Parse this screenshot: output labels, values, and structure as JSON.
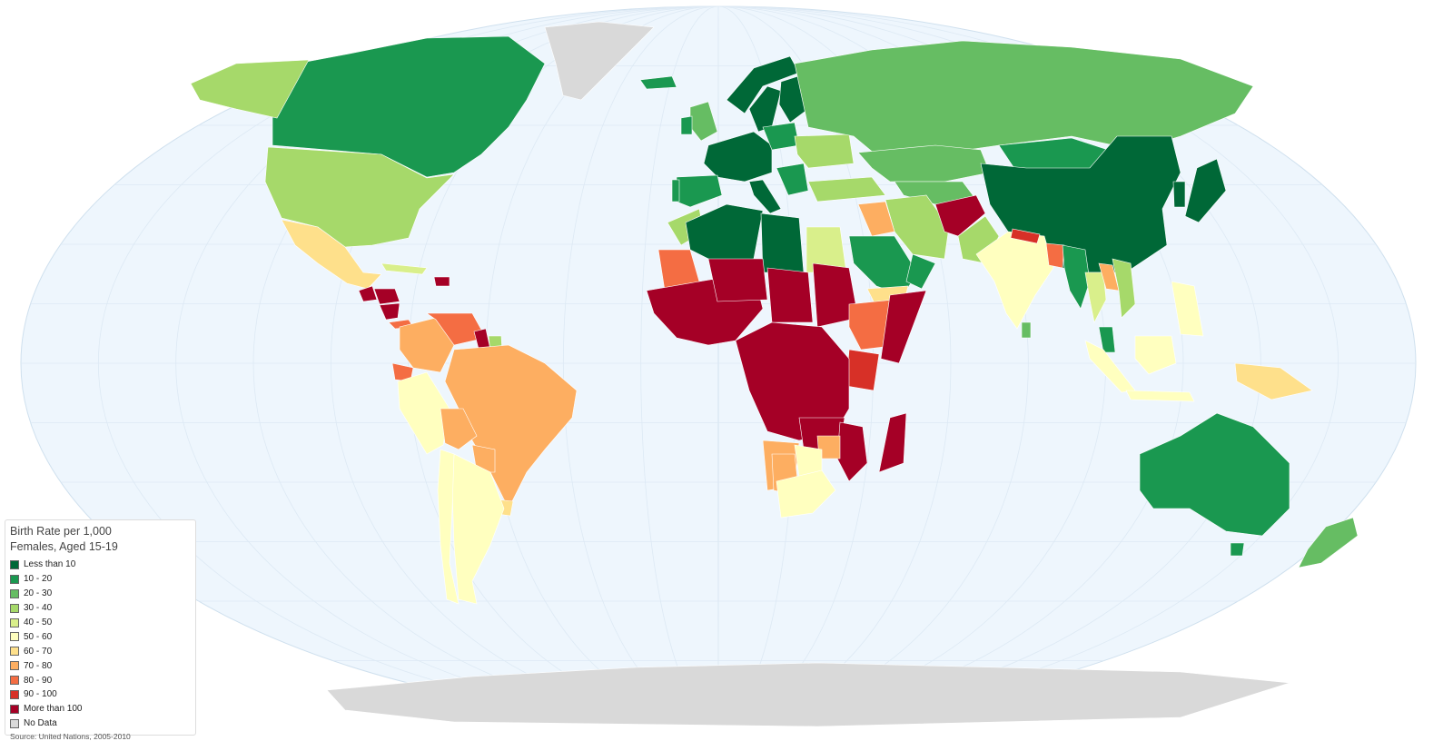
{
  "legend": {
    "title": "Birth Rate per 1,000 Females, Aged 15-19",
    "source": "Source: United Nations, 2005-2010",
    "items": [
      {
        "label": "Less than 10",
        "color": "#006837"
      },
      {
        "label": "10 - 20",
        "color": "#1a9850"
      },
      {
        "label": "20 - 30",
        "color": "#66bd63"
      },
      {
        "label": "30 - 40",
        "color": "#a6d96a"
      },
      {
        "label": "40 - 50",
        "color": "#d9ef8b"
      },
      {
        "label": "50 - 60",
        "color": "#ffffbf"
      },
      {
        "label": "60 - 70",
        "color": "#fee08b"
      },
      {
        "label": "70 - 80",
        "color": "#fdae61"
      },
      {
        "label": "80 - 90",
        "color": "#f46d43"
      },
      {
        "label": "90 - 100",
        "color": "#d73027"
      },
      {
        "label": "More than 100",
        "color": "#a50026"
      },
      {
        "label": "No Data",
        "color": "#d9d9d9"
      }
    ]
  },
  "map": {
    "projection": "robinson",
    "ocean_color": "#eef6fd",
    "graticule_color": "#dde9f4",
    "nodata_color": "#d9d9d9"
  },
  "regions": [
    {
      "name": "Greenland",
      "class": "No Data"
    },
    {
      "name": "Antarctica",
      "class": "No Data"
    },
    {
      "name": "Canada",
      "class": "10 - 20"
    },
    {
      "name": "Alaska",
      "class": "30 - 40"
    },
    {
      "name": "United States",
      "class": "30 - 40"
    },
    {
      "name": "Mexico",
      "class": "60 - 70"
    },
    {
      "name": "Guatemala",
      "class": "More than 100"
    },
    {
      "name": "Honduras",
      "class": "More than 100"
    },
    {
      "name": "Nicaragua",
      "class": "More than 100"
    },
    {
      "name": "Panama",
      "class": "80 - 90"
    },
    {
      "name": "Cuba",
      "class": "40 - 50"
    },
    {
      "name": "Dominican Republic",
      "class": "More than 100"
    },
    {
      "name": "Colombia",
      "class": "70 - 80"
    },
    {
      "name": "Venezuela",
      "class": "80 - 90"
    },
    {
      "name": "Guyana",
      "class": "More than 100"
    },
    {
      "name": "Suriname",
      "class": "30 - 40"
    },
    {
      "name": "Ecuador",
      "class": "80 - 90"
    },
    {
      "name": "Peru",
      "class": "50 - 60"
    },
    {
      "name": "Brazil",
      "class": "70 - 80"
    },
    {
      "name": "Bolivia",
      "class": "70 - 80"
    },
    {
      "name": "Paraguay",
      "class": "70 - 80"
    },
    {
      "name": "Uruguay",
      "class": "60 - 70"
    },
    {
      "name": "Argentina",
      "class": "50 - 60"
    },
    {
      "name": "Chile",
      "class": "50 - 60"
    },
    {
      "name": "Iceland",
      "class": "10 - 20"
    },
    {
      "name": "Norway",
      "class": "Less than 10"
    },
    {
      "name": "Sweden",
      "class": "Less than 10"
    },
    {
      "name": "Finland",
      "class": "Less than 10"
    },
    {
      "name": "United Kingdom",
      "class": "20 - 30"
    },
    {
      "name": "Ireland",
      "class": "10 - 20"
    },
    {
      "name": "Western Europe",
      "class": "Less than 10"
    },
    {
      "name": "Spain",
      "class": "10 - 20"
    },
    {
      "name": "Portugal",
      "class": "10 - 20"
    },
    {
      "name": "Italy",
      "class": "Less than 10"
    },
    {
      "name": "Poland",
      "class": "10 - 20"
    },
    {
      "name": "Balkans",
      "class": "10 - 20"
    },
    {
      "name": "Ukraine",
      "class": "30 - 40"
    },
    {
      "name": "Turkey",
      "class": "30 - 40"
    },
    {
      "name": "Russia",
      "class": "20 - 30"
    },
    {
      "name": "Kazakhstan",
      "class": "20 - 30"
    },
    {
      "name": "Central Asia",
      "class": "20 - 30"
    },
    {
      "name": "Mongolia",
      "class": "10 - 20"
    },
    {
      "name": "China",
      "class": "Less than 10"
    },
    {
      "name": "Korea",
      "class": "Less than 10"
    },
    {
      "name": "Japan",
      "class": "Less than 10"
    },
    {
      "name": "Iran",
      "class": "30 - 40"
    },
    {
      "name": "Iraq",
      "class": "70 - 80"
    },
    {
      "name": "Afghanistan",
      "class": "More than 100"
    },
    {
      "name": "Pakistan",
      "class": "30 - 40"
    },
    {
      "name": "Saudi Arabia",
      "class": "10 - 20"
    },
    {
      "name": "Oman",
      "class": "10 - 20"
    },
    {
      "name": "Yemen",
      "class": "60 - 70"
    },
    {
      "name": "India",
      "class": "50 - 60"
    },
    {
      "name": "Sri Lanka",
      "class": "20 - 30"
    },
    {
      "name": "Nepal",
      "class": "90 - 100"
    },
    {
      "name": "Bangladesh",
      "class": "80 - 90"
    },
    {
      "name": "Myanmar",
      "class": "10 - 20"
    },
    {
      "name": "Thailand",
      "class": "40 - 50"
    },
    {
      "name": "Laos",
      "class": "70 - 80"
    },
    {
      "name": "Vietnam",
      "class": "30 - 40"
    },
    {
      "name": "Malaysia",
      "class": "10 - 20"
    },
    {
      "name": "Philippines",
      "class": "50 - 60"
    },
    {
      "name": "Sumatra",
      "class": "50 - 60"
    },
    {
      "name": "Borneo",
      "class": "50 - 60"
    },
    {
      "name": "Java",
      "class": "50 - 60"
    },
    {
      "name": "Papua New Guinea",
      "class": "60 - 70"
    },
    {
      "name": "Australia",
      "class": "10 - 20"
    },
    {
      "name": "Tasmania",
      "class": "10 - 20"
    },
    {
      "name": "New Zealand",
      "class": "20 - 30"
    },
    {
      "name": "Morocco",
      "class": "30 - 40"
    },
    {
      "name": "Algeria",
      "class": "Less than 10"
    },
    {
      "name": "Libya",
      "class": "Less than 10"
    },
    {
      "name": "Egypt",
      "class": "40 - 50"
    },
    {
      "name": "Mauritania",
      "class": "80 - 90"
    },
    {
      "name": "West Africa",
      "class": "More than 100"
    },
    {
      "name": "Niger",
      "class": "More than 100"
    },
    {
      "name": "Chad",
      "class": "More than 100"
    },
    {
      "name": "Sudan",
      "class": "More than 100"
    },
    {
      "name": "Ethiopia",
      "class": "80 - 90"
    },
    {
      "name": "Somalia",
      "class": "More than 100"
    },
    {
      "name": "Kenya",
      "class": "90 - 100"
    },
    {
      "name": "Central Africa",
      "class": "More than 100"
    },
    {
      "name": "Angola",
      "class": "70 - 80"
    },
    {
      "name": "Zambia",
      "class": "More than 100"
    },
    {
      "name": "Mozambique",
      "class": "More than 100"
    },
    {
      "name": "Zimbabwe",
      "class": "70 - 80"
    },
    {
      "name": "Botswana",
      "class": "50 - 60"
    },
    {
      "name": "Namibia",
      "class": "70 - 80"
    },
    {
      "name": "South Africa",
      "class": "50 - 60"
    },
    {
      "name": "Madagascar",
      "class": "More than 100"
    }
  ]
}
